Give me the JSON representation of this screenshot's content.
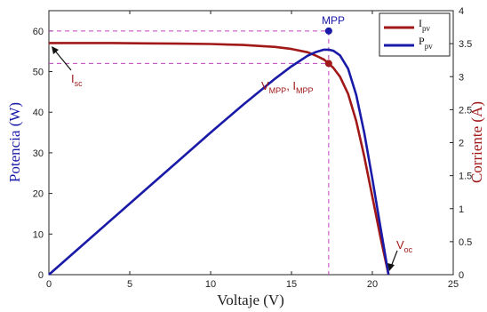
{
  "chart_data": {
    "type": "line",
    "xlabel": "Voltaje (V)",
    "ylabel_left": "Potencia (W)",
    "ylabel_right": "Corriente (A)",
    "xlim": [
      0,
      25
    ],
    "ylim_left": [
      0,
      65
    ],
    "ylim_right": [
      0,
      4
    ],
    "x_ticks": [
      0,
      5,
      10,
      15,
      20,
      25
    ],
    "y_ticks_left": [
      0,
      10,
      20,
      30,
      40,
      50,
      60
    ],
    "y_ticks_right": [
      0,
      0.5,
      1,
      1.5,
      2,
      2.5,
      3,
      3.5,
      4
    ],
    "legend_position": "top-right",
    "series": [
      {
        "name": "I_pv",
        "axis": "right",
        "color": "#a01818",
        "x": [
          0,
          2,
          4,
          6,
          8,
          10,
          12,
          14,
          15,
          16,
          16.5,
          17,
          17.3,
          17.6,
          18,
          18.5,
          19,
          19.5,
          20,
          20.5,
          21
        ],
        "y": [
          3.51,
          3.51,
          3.51,
          3.505,
          3.5,
          3.495,
          3.48,
          3.45,
          3.42,
          3.37,
          3.32,
          3.26,
          3.2,
          3.13,
          3.0,
          2.74,
          2.33,
          1.79,
          1.18,
          0.57,
          0
        ]
      },
      {
        "name": "P_pv",
        "axis": "left",
        "color": "#1a1aa8",
        "x": [
          0,
          2,
          4,
          6,
          8,
          10,
          12,
          14,
          15,
          16,
          16.5,
          17,
          17.3,
          17.6,
          18,
          18.5,
          19,
          19.5,
          20,
          20.5,
          21
        ],
        "y": [
          0,
          7.0,
          14.0,
          21.0,
          28.0,
          35.0,
          41.8,
          48.3,
          51.3,
          53.9,
          54.8,
          55.4,
          55.4,
          55.1,
          54.0,
          50.7,
          44.3,
          34.9,
          23.6,
          11.7,
          0
        ]
      }
    ],
    "annotations": [
      {
        "name": "MPP",
        "text": "MPP",
        "x": 17.3,
        "y": 60,
        "axis": "left",
        "color": "#1a1aa8"
      },
      {
        "name": "MPP current point",
        "text": "V_MPP, I_MPP",
        "x": 17.3,
        "y": 3.2,
        "axis": "right",
        "color": "#a01818"
      },
      {
        "name": "Isc",
        "text": "I_sc",
        "x": 0,
        "y": 3.51,
        "axis": "right",
        "color": "#a01818"
      },
      {
        "name": "Voc",
        "text": "V_oc",
        "x": 21,
        "y": 0,
        "axis": "right",
        "color": "#a01818"
      }
    ]
  },
  "labels": {
    "xlabel": "Voltaje (V)",
    "ylabel_left": "Potencia (W)",
    "ylabel_right": "Corriente (A)",
    "mpp": "MPP",
    "vmpp_v": "V",
    "vmpp_sub": "MPP",
    "vmpp_sep": ", I",
    "impp_sub": "MPP",
    "isc_base": "I",
    "isc_sub": "sc",
    "voc_base": "V",
    "voc_sub": "oc",
    "legend_i_base": "I",
    "legend_i_sub": "pv",
    "legend_p_base": "P",
    "legend_p_sub": "pv"
  },
  "colors": {
    "current": "#a01818",
    "power": "#1a1aa8",
    "guide": "#c040c0",
    "axis": "#222222"
  }
}
